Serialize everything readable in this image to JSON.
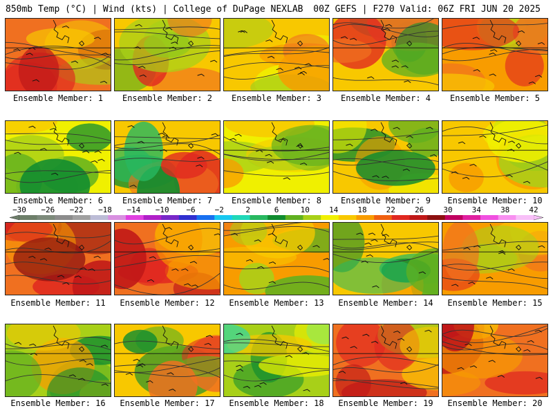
{
  "header": {
    "left": "850mb Temp (°C) | Wind (kts) | College of DuPage NEXLAB",
    "right": "00Z GEFS | F270 Valid: 06Z FRI JUN 20 2025"
  },
  "members": [
    {
      "label": "Ensemble Member: 1"
    },
    {
      "label": "Ensemble Member: 2"
    },
    {
      "label": "Ensemble Member: 3"
    },
    {
      "label": "Ensemble Member: 4"
    },
    {
      "label": "Ensemble Member: 5"
    },
    {
      "label": "Ensemble Member: 6"
    },
    {
      "label": "Ensemble Member: 7"
    },
    {
      "label": "Ensemble Member: 8"
    },
    {
      "label": "Ensemble Member: 9"
    },
    {
      "label": "Ensemble Member: 10"
    },
    {
      "label": "Ensemble Member: 11"
    },
    {
      "label": "Ensemble Member: 12"
    },
    {
      "label": "Ensemble Member: 13"
    },
    {
      "label": "Ensemble Member: 14"
    },
    {
      "label": "Ensemble Member: 15"
    },
    {
      "label": "Ensemble Member: 16"
    },
    {
      "label": "Ensemble Member: 17"
    },
    {
      "label": "Ensemble Member: 18"
    },
    {
      "label": "Ensemble Member: 19"
    },
    {
      "label": "Ensemble Member: 20"
    }
  ],
  "colorbar": {
    "tick_labels": [
      "−30",
      "−26",
      "−22",
      "−18",
      "−14",
      "−10",
      "−6",
      "−2",
      "2",
      "6",
      "10",
      "14",
      "18",
      "22",
      "26",
      "30",
      "34",
      "38",
      "42"
    ],
    "colors": [
      "#6e7f6a",
      "#7d8a7b",
      "#8c8c8c",
      "#a0a0a0",
      "#bcbcd6",
      "#d890e0",
      "#e040e0",
      "#b020c8",
      "#7828c8",
      "#3030d0",
      "#1870f0",
      "#18c8f0",
      "#20d8b8",
      "#28b860",
      "#108c30",
      "#60b020",
      "#a8d018",
      "#f0f000",
      "#f8c800",
      "#f89c00",
      "#f06010",
      "#e02820",
      "#c01818",
      "#8c1010",
      "#c00060",
      "#e020a0",
      "#f050e0",
      "#f890f0",
      "#f8c0f8"
    ]
  }
}
